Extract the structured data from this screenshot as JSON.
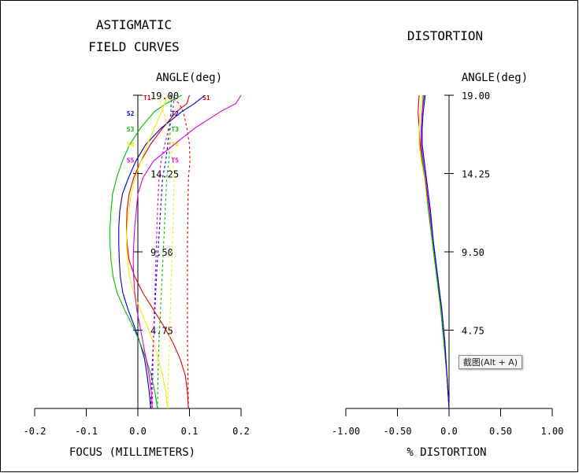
{
  "chart_data": [
    {
      "type": "line",
      "title": "ASTIGMATIC\nFIELD CURVES",
      "angle_label": "ANGLE(deg)",
      "xlabel": "FOCUS (MILLIMETERS)",
      "x_tick_labels": [
        "-0.2",
        "-0.1",
        "0.0",
        "0.1",
        "0.2"
      ],
      "x_ticks": [
        -0.2,
        -0.1,
        0.0,
        0.1,
        0.2
      ],
      "xlim": [
        -0.2,
        0.2
      ],
      "ylim": [
        0,
        19
      ],
      "y_tick_labels": [
        "19.00",
        "14.25",
        "9.50",
        "4.75"
      ],
      "y_ticks": [
        19.0,
        14.25,
        9.5,
        4.75
      ],
      "series": [
        {
          "name": "S1",
          "color": "#e00000",
          "style": "solid",
          "points": [
            [
              0.098,
              0
            ],
            [
              0.096,
              1
            ],
            [
              0.092,
              2
            ],
            [
              0.082,
              3
            ],
            [
              0.068,
              4
            ],
            [
              0.05,
              5
            ],
            [
              0.03,
              6
            ],
            [
              0.01,
              7
            ],
            [
              -0.006,
              8
            ],
            [
              -0.017,
              9
            ],
            [
              -0.021,
              10
            ],
            [
              -0.022,
              11
            ],
            [
              -0.021,
              12
            ],
            [
              -0.017,
              13
            ],
            [
              -0.008,
              14
            ],
            [
              0.006,
              15
            ],
            [
              0.024,
              16
            ],
            [
              0.048,
              17
            ],
            [
              0.075,
              18
            ],
            [
              0.095,
              18.5
            ],
            [
              0.1,
              19
            ]
          ]
        },
        {
          "name": "T1",
          "color": "#e00000",
          "style": "dashed",
          "points": [
            [
              0.098,
              0
            ],
            [
              0.097,
              2
            ],
            [
              0.096,
              4
            ],
            [
              0.096,
              6
            ],
            [
              0.096,
              8
            ],
            [
              0.096,
              10
            ],
            [
              0.097,
              12
            ],
            [
              0.098,
              14
            ],
            [
              0.101,
              15
            ],
            [
              0.1,
              16
            ],
            [
              0.095,
              17
            ],
            [
              0.088,
              18
            ],
            [
              0.08,
              18.5
            ],
            [
              0.06,
              19
            ]
          ]
        },
        {
          "name": "S2",
          "color": "#0000cc",
          "style": "solid",
          "points": [
            [
              0.025,
              0
            ],
            [
              0.022,
              1
            ],
            [
              0.018,
              2
            ],
            [
              0.013,
              3
            ],
            [
              0.004,
              4
            ],
            [
              -0.007,
              5
            ],
            [
              -0.019,
              6
            ],
            [
              -0.029,
              7
            ],
            [
              -0.034,
              8
            ],
            [
              -0.036,
              9
            ],
            [
              -0.037,
              10
            ],
            [
              -0.037,
              11
            ],
            [
              -0.035,
              12
            ],
            [
              -0.03,
              13
            ],
            [
              -0.018,
              14
            ],
            [
              -0.004,
              15
            ],
            [
              0.015,
              16
            ],
            [
              0.045,
              17
            ],
            [
              0.085,
              18
            ],
            [
              0.11,
              18.5
            ],
            [
              0.13,
              19
            ]
          ]
        },
        {
          "name": "T2",
          "color": "#0000cc",
          "style": "dashed",
          "points": [
            [
              0.025,
              0
            ],
            [
              0.027,
              2
            ],
            [
              0.03,
              4
            ],
            [
              0.033,
              6
            ],
            [
              0.036,
              8
            ],
            [
              0.04,
              10
            ],
            [
              0.044,
              12
            ],
            [
              0.048,
              14
            ],
            [
              0.054,
              15
            ],
            [
              0.058,
              16
            ],
            [
              0.061,
              17
            ],
            [
              0.064,
              18
            ],
            [
              0.065,
              19
            ]
          ]
        },
        {
          "name": "S3",
          "color": "#00bb00",
          "style": "solid",
          "points": [
            [
              0.038,
              0
            ],
            [
              0.033,
              1
            ],
            [
              0.026,
              2
            ],
            [
              0.016,
              3
            ],
            [
              0.004,
              4
            ],
            [
              -0.01,
              5
            ],
            [
              -0.026,
              6
            ],
            [
              -0.04,
              7
            ],
            [
              -0.048,
              8
            ],
            [
              -0.052,
              9
            ],
            [
              -0.054,
              10
            ],
            [
              -0.054,
              11
            ],
            [
              -0.052,
              12
            ],
            [
              -0.049,
              13
            ],
            [
              -0.041,
              14
            ],
            [
              -0.03,
              15
            ],
            [
              -0.016,
              16
            ],
            [
              0.005,
              17
            ],
            [
              0.032,
              18
            ],
            [
              0.055,
              18.5
            ],
            [
              0.085,
              19
            ]
          ]
        },
        {
          "name": "T3",
          "color": "#00bb00",
          "style": "dashed",
          "points": [
            [
              0.038,
              0
            ],
            [
              0.039,
              2
            ],
            [
              0.041,
              4
            ],
            [
              0.044,
              6
            ],
            [
              0.047,
              8
            ],
            [
              0.05,
              10
            ],
            [
              0.053,
              12
            ],
            [
              0.056,
              14
            ],
            [
              0.06,
              15
            ],
            [
              0.062,
              16
            ],
            [
              0.063,
              17
            ],
            [
              0.064,
              18
            ],
            [
              0.066,
              19
            ]
          ]
        },
        {
          "name": "S4",
          "color": "#eeee00",
          "style": "solid",
          "points": [
            [
              0.058,
              0
            ],
            [
              0.054,
              1
            ],
            [
              0.048,
              2
            ],
            [
              0.04,
              3
            ],
            [
              0.03,
              4
            ],
            [
              0.018,
              5
            ],
            [
              0.005,
              6
            ],
            [
              -0.008,
              7
            ],
            [
              -0.016,
              8
            ],
            [
              -0.02,
              9
            ],
            [
              -0.022,
              10
            ],
            [
              -0.021,
              11
            ],
            [
              -0.018,
              12
            ],
            [
              -0.013,
              13
            ],
            [
              -0.005,
              14
            ],
            [
              0.006,
              15
            ],
            [
              0.018,
              16
            ],
            [
              0.032,
              17
            ],
            [
              0.046,
              18
            ],
            [
              0.052,
              18.5
            ],
            [
              0.058,
              19
            ]
          ]
        },
        {
          "name": "T4",
          "color": "#eeee00",
          "style": "dashed",
          "points": [
            [
              0.058,
              0
            ],
            [
              0.059,
              2
            ],
            [
              0.061,
              4
            ],
            [
              0.063,
              6
            ],
            [
              0.065,
              8
            ],
            [
              0.067,
              10
            ],
            [
              0.069,
              12
            ],
            [
              0.07,
              14
            ],
            [
              0.068,
              15
            ],
            [
              0.064,
              16
            ],
            [
              0.058,
              17
            ],
            [
              0.05,
              18
            ],
            [
              0.04,
              19
            ]
          ]
        },
        {
          "name": "S5",
          "color": "#dd00dd",
          "style": "solid",
          "points": [
            [
              0.028,
              0
            ],
            [
              0.026,
              1
            ],
            [
              0.022,
              2
            ],
            [
              0.016,
              3
            ],
            [
              0.01,
              4
            ],
            [
              0.004,
              5
            ],
            [
              -0.002,
              6
            ],
            [
              -0.006,
              7
            ],
            [
              -0.008,
              8
            ],
            [
              -0.009,
              9
            ],
            [
              -0.008,
              10
            ],
            [
              -0.006,
              11
            ],
            [
              -0.003,
              12
            ],
            [
              0.0,
              13
            ],
            [
              0.01,
              14
            ],
            [
              0.03,
              15
            ],
            [
              0.07,
              16
            ],
            [
              0.11,
              17
            ],
            [
              0.16,
              18
            ],
            [
              0.19,
              18.5
            ],
            [
              0.2,
              19
            ]
          ]
        },
        {
          "name": "T5",
          "color": "#dd00dd",
          "style": "dashed",
          "points": [
            [
              0.028,
              0
            ],
            [
              0.029,
              2
            ],
            [
              0.03,
              4
            ],
            [
              0.032,
              6
            ],
            [
              0.034,
              8
            ],
            [
              0.036,
              10
            ],
            [
              0.038,
              12
            ],
            [
              0.041,
              14
            ],
            [
              0.045,
              15
            ],
            [
              0.052,
              16
            ],
            [
              0.06,
              17
            ],
            [
              0.068,
              18
            ],
            [
              0.07,
              19
            ]
          ]
        }
      ]
    },
    {
      "type": "line",
      "title": "DISTORTION",
      "angle_label": "ANGLE(deg)",
      "xlabel": "% DISTORTION",
      "x_tick_labels": [
        "-1.00",
        "-0.50",
        "0.0",
        "0.50",
        "1.00"
      ],
      "x_ticks": [
        -1.0,
        -0.5,
        0.0,
        0.5,
        1.0
      ],
      "xlim": [
        -1.0,
        1.0
      ],
      "ylim": [
        0,
        19
      ],
      "y_tick_labels": [
        "19.00",
        "14.25",
        "9.50",
        "4.75"
      ],
      "y_ticks": [
        19.0,
        14.25,
        9.5,
        4.75
      ],
      "series": [
        {
          "color": "#e00000",
          "style": "solid",
          "points": [
            [
              0,
              0
            ],
            [
              -0.02,
              2
            ],
            [
              -0.05,
              4
            ],
            [
              -0.08,
              6
            ],
            [
              -0.11,
              8
            ],
            [
              -0.15,
              10
            ],
            [
              -0.19,
              12
            ],
            [
              -0.23,
              14
            ],
            [
              -0.26,
              15
            ],
            [
              -0.28,
              16
            ],
            [
              -0.29,
              17
            ],
            [
              -0.3,
              18
            ],
            [
              -0.29,
              19
            ]
          ]
        },
        {
          "color": "#eeee00",
          "style": "solid",
          "points": [
            [
              0,
              0
            ],
            [
              -0.02,
              2
            ],
            [
              -0.05,
              4
            ],
            [
              -0.08,
              6
            ],
            [
              -0.12,
              8
            ],
            [
              -0.16,
              10
            ],
            [
              -0.2,
              12
            ],
            [
              -0.24,
              14
            ],
            [
              -0.27,
              15
            ],
            [
              -0.29,
              16
            ],
            [
              -0.29,
              17
            ],
            [
              -0.28,
              18
            ],
            [
              -0.26,
              19
            ]
          ]
        },
        {
          "color": "#00bb00",
          "style": "solid",
          "points": [
            [
              0,
              0
            ],
            [
              -0.02,
              2
            ],
            [
              -0.05,
              4
            ],
            [
              -0.08,
              6
            ],
            [
              -0.12,
              8
            ],
            [
              -0.16,
              10
            ],
            [
              -0.2,
              12
            ],
            [
              -0.23,
              14
            ],
            [
              -0.26,
              15
            ],
            [
              -0.27,
              16
            ],
            [
              -0.27,
              17
            ],
            [
              -0.26,
              18
            ],
            [
              -0.25,
              19
            ]
          ]
        },
        {
          "color": "#dd00dd",
          "style": "solid",
          "points": [
            [
              0,
              0
            ],
            [
              -0.02,
              2
            ],
            [
              -0.04,
              4
            ],
            [
              -0.07,
              6
            ],
            [
              -0.11,
              8
            ],
            [
              -0.15,
              10
            ],
            [
              -0.19,
              12
            ],
            [
              -0.23,
              14
            ],
            [
              -0.25,
              15
            ],
            [
              -0.27,
              16
            ],
            [
              -0.27,
              17
            ],
            [
              -0.26,
              18
            ],
            [
              -0.24,
              19
            ]
          ]
        },
        {
          "color": "#0000cc",
          "style": "solid",
          "points": [
            [
              0,
              0
            ],
            [
              -0.02,
              2
            ],
            [
              -0.04,
              4
            ],
            [
              -0.07,
              6
            ],
            [
              -0.11,
              8
            ],
            [
              -0.15,
              10
            ],
            [
              -0.18,
              12
            ],
            [
              -0.22,
              14
            ],
            [
              -0.24,
              15
            ],
            [
              -0.26,
              16
            ],
            [
              -0.26,
              17
            ],
            [
              -0.25,
              18
            ],
            [
              -0.23,
              19
            ]
          ]
        }
      ]
    }
  ],
  "tooltip": "截图(Alt + A)"
}
